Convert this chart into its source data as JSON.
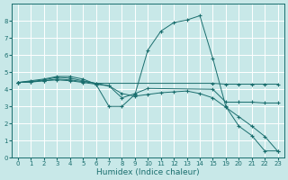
{
  "bg_color": "#c8e8e8",
  "grid_color": "#ffffff",
  "line_color": "#1a6e6e",
  "xlabel": "Humidex (Indice chaleur)",
  "xlabel_fontsize": 6.5,
  "tick_fontsize": 5,
  "xlim": [
    -0.5,
    20.5
  ],
  "ylim": [
    0,
    9
  ],
  "x_indices": [
    0,
    1,
    2,
    3,
    4,
    5,
    6,
    7,
    8,
    9,
    10,
    11,
    12,
    13,
    14,
    15,
    16,
    17,
    18,
    19,
    20
  ],
  "x_labels": [
    "0",
    "1",
    "2",
    "3",
    "4",
    "5",
    "6",
    "7",
    "8",
    "9",
    "10",
    "11",
    "12",
    "13",
    "14",
    "15",
    "19",
    "20",
    "21",
    "22",
    "23"
  ],
  "yticks": [
    0,
    1,
    2,
    3,
    4,
    5,
    6,
    7,
    8
  ],
  "lines": [
    {
      "xi": [
        0,
        1,
        2,
        3,
        4,
        5,
        6,
        7,
        8,
        9,
        10,
        11,
        12,
        13,
        14,
        15,
        16,
        17,
        18,
        19,
        20
      ],
      "y": [
        4.4,
        4.5,
        4.6,
        4.75,
        4.75,
        4.6,
        4.3,
        3.0,
        3.0,
        3.7,
        6.3,
        7.4,
        7.9,
        8.05,
        8.3,
        5.8,
        3.0,
        1.85,
        1.3,
        0.4,
        0.4
      ]
    },
    {
      "xi": [
        0,
        1,
        2,
        3,
        4,
        5,
        6,
        15,
        16,
        17,
        18,
        19,
        20
      ],
      "y": [
        4.4,
        4.45,
        4.55,
        4.7,
        4.65,
        4.5,
        4.35,
        4.35,
        4.3,
        4.3,
        4.3,
        4.3,
        4.3
      ]
    },
    {
      "xi": [
        0,
        1,
        2,
        3,
        4,
        5,
        6,
        7,
        8,
        9,
        10,
        15,
        16,
        17,
        18,
        19,
        20
      ],
      "y": [
        4.4,
        4.45,
        4.5,
        4.6,
        4.55,
        4.45,
        4.35,
        4.2,
        3.5,
        3.75,
        4.05,
        4.0,
        3.25,
        3.25,
        3.25,
        3.2,
        3.2
      ]
    },
    {
      "xi": [
        0,
        1,
        2,
        3,
        4,
        5,
        6,
        7,
        8,
        9,
        10,
        11,
        12,
        13,
        14,
        15,
        16,
        17,
        18,
        19,
        20
      ],
      "y": [
        4.4,
        4.42,
        4.5,
        4.55,
        4.5,
        4.4,
        4.3,
        4.2,
        3.75,
        3.6,
        3.7,
        3.8,
        3.85,
        3.9,
        3.75,
        3.5,
        2.95,
        2.4,
        1.85,
        1.25,
        0.38
      ]
    }
  ]
}
